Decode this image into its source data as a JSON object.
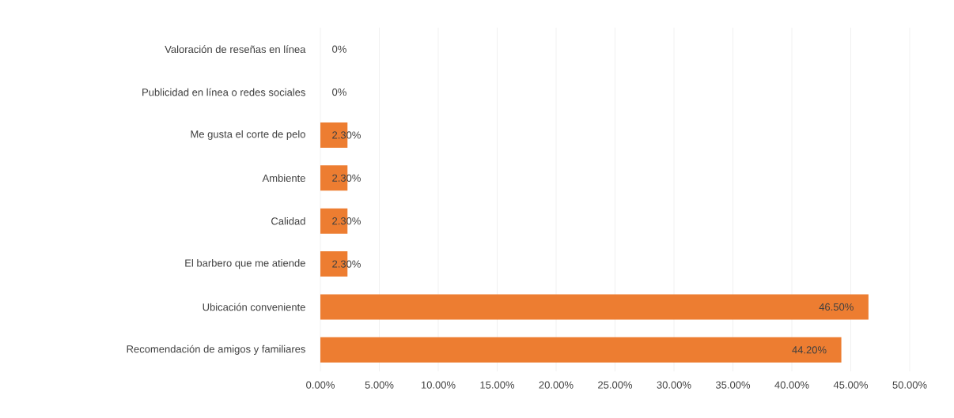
{
  "chart_data": {
    "type": "bar",
    "orientation": "horizontal",
    "categories": [
      "Valoración de reseñas en línea",
      "Publicidad en línea o redes sociales",
      "Me gusta el corte de pelo",
      "Ambiente",
      "Calidad",
      "El barbero que me atiende",
      "Ubicación conveniente",
      "Recomendación de amigos y familiares"
    ],
    "values": [
      0,
      0,
      2.3,
      2.3,
      2.3,
      2.3,
      46.5,
      44.2
    ],
    "value_labels": [
      "0%",
      "0%",
      "2.30%",
      "2.30%",
      "2.30%",
      "2.30%",
      "46.50%",
      "44.20%"
    ],
    "color": "#ed7d31",
    "xlim": [
      0,
      50
    ],
    "xticks": [
      {
        "value": 0,
        "label": "0.00%"
      },
      {
        "value": 5,
        "label": "5.00%"
      },
      {
        "value": 10,
        "label": "10.00%"
      },
      {
        "value": 15,
        "label": "15.00%"
      },
      {
        "value": 20,
        "label": "20.00%"
      },
      {
        "value": 25,
        "label": "25.00%"
      },
      {
        "value": 30,
        "label": "30.00%"
      },
      {
        "value": 35,
        "label": "35.00%"
      },
      {
        "value": 40,
        "label": "40.00%"
      },
      {
        "value": 45,
        "label": "45.00%"
      },
      {
        "value": 50,
        "label": "50.00%"
      }
    ],
    "grid": "x"
  }
}
